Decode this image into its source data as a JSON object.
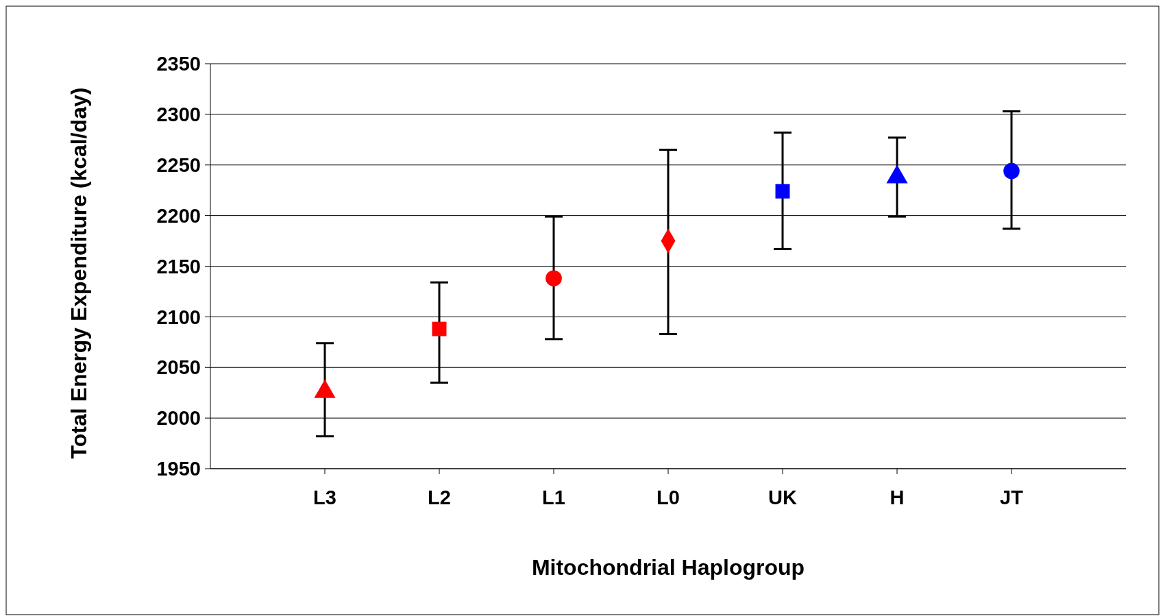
{
  "chart_data": {
    "type": "scatter",
    "xlabel": "Mitochondrial Haplogroup",
    "ylabel": "Total Energy Expenditure (kcal/day)",
    "categories": [
      "L3",
      "L2",
      "L1",
      "L0",
      "UK",
      "H",
      "JT"
    ],
    "ylim": [
      1950,
      2350
    ],
    "yticks": [
      1950,
      2000,
      2050,
      2100,
      2150,
      2200,
      2250,
      2300,
      2350
    ],
    "grid": "y",
    "series": [
      {
        "x": [
          "L3"
        ],
        "values": [
          2026
        ],
        "errors": [
          [
            1982,
            2074
          ]
        ],
        "color": "#ff0000",
        "marker": "triangle"
      },
      {
        "x": [
          "L2"
        ],
        "values": [
          2088
        ],
        "errors": [
          [
            2035,
            2134
          ]
        ],
        "color": "#ff0000",
        "marker": "square"
      },
      {
        "x": [
          "L1"
        ],
        "values": [
          2138
        ],
        "errors": [
          [
            2078,
            2199
          ]
        ],
        "color": "#ff0000",
        "marker": "circle"
      },
      {
        "x": [
          "L0"
        ],
        "values": [
          2175
        ],
        "errors": [
          [
            2083,
            2265
          ]
        ],
        "color": "#ff0000",
        "marker": "diamond"
      },
      {
        "x": [
          "UK"
        ],
        "values": [
          2224
        ],
        "errors": [
          [
            2167,
            2282
          ]
        ],
        "color": "#0000ff",
        "marker": "square"
      },
      {
        "x": [
          "H"
        ],
        "values": [
          2238
        ],
        "errors": [
          [
            2199,
            2277
          ]
        ],
        "color": "#0000ff",
        "marker": "triangle"
      },
      {
        "x": [
          "JT"
        ],
        "values": [
          2244
        ],
        "errors": [
          [
            2187,
            2303
          ]
        ],
        "color": "#0000ff",
        "marker": "circle"
      }
    ]
  }
}
